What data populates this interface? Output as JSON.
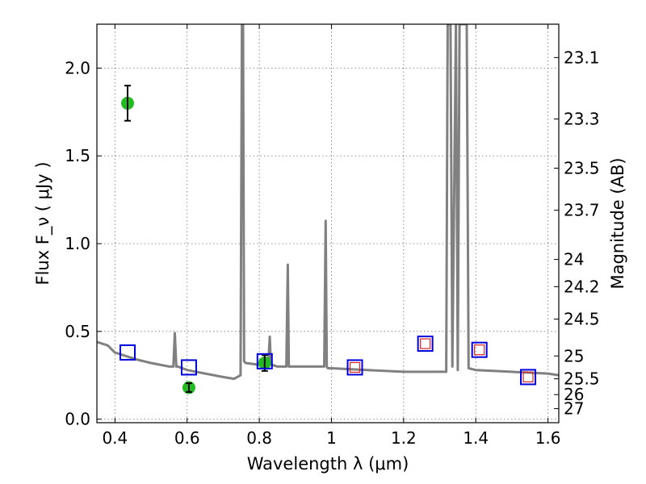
{
  "chart_data": {
    "type": "line",
    "xlabel": "Wavelength λ (μm)",
    "ylabel": "Flux F_ν ( μJy )",
    "y2label": "Magnitude (AB)",
    "xlim": [
      0.35,
      1.63
    ],
    "ylim": [
      -0.02,
      2.25
    ],
    "grid": true,
    "x_ticks": [
      0.4,
      0.6,
      0.8,
      1.0,
      1.2,
      1.4,
      1.6
    ],
    "x_tick_labels": [
      "0.4",
      "0.6",
      "0.8",
      "1",
      "1.2",
      "1.4",
      "1.6"
    ],
    "y_ticks": [
      0.0,
      0.5,
      1.0,
      1.5,
      2.0
    ],
    "y_tick_labels": [
      "0.0",
      "0.5",
      "1.0",
      "1.5",
      "2.0"
    ],
    "magnitude_ticks": [
      {
        "label": "23.1",
        "flux": 2.06
      },
      {
        "label": "23.3",
        "flux": 1.71
      },
      {
        "label": "23.5",
        "flux": 1.43
      },
      {
        "label": "23.7",
        "flux": 1.19
      },
      {
        "label": "24",
        "flux": 0.91
      },
      {
        "label": "24.2",
        "flux": 0.755
      },
      {
        "label": "24.5",
        "flux": 0.57
      },
      {
        "label": "25",
        "flux": 0.36
      },
      {
        "label": "25.5",
        "flux": 0.23
      },
      {
        "label": "26",
        "flux": 0.14
      },
      {
        "label": "27",
        "flux": 0.06
      }
    ],
    "series": [
      {
        "style": "line",
        "color": "#808080",
        "x": [
          0.35,
          0.38,
          0.4,
          0.43,
          0.46,
          0.5,
          0.55,
          0.562,
          0.566,
          0.57,
          0.574,
          0.6,
          0.65,
          0.7,
          0.73,
          0.748,
          0.752,
          0.755,
          0.758,
          0.762,
          0.8,
          0.825,
          0.829,
          0.832,
          0.835,
          0.85,
          0.875,
          0.879,
          0.882,
          0.885,
          0.9,
          0.95,
          0.98,
          0.984,
          0.987,
          0.99,
          1.0,
          1.1,
          1.2,
          1.25,
          1.318,
          1.322,
          1.33,
          1.335,
          1.345,
          1.35,
          1.355,
          1.36,
          1.375,
          1.38,
          1.4,
          1.5,
          1.6,
          1.63
        ],
        "y": [
          0.44,
          0.42,
          0.38,
          0.36,
          0.34,
          0.32,
          0.3,
          0.3,
          0.49,
          0.3,
          0.3,
          0.28,
          0.26,
          0.24,
          0.23,
          0.25,
          2.25,
          2.25,
          0.33,
          0.32,
          0.31,
          0.32,
          0.47,
          0.31,
          0.31,
          0.3,
          0.3,
          0.88,
          0.3,
          0.3,
          0.3,
          0.3,
          0.3,
          1.13,
          0.3,
          0.29,
          0.29,
          0.28,
          0.27,
          0.27,
          0.27,
          2.25,
          2.25,
          0.3,
          2.25,
          0.28,
          2.25,
          2.25,
          2.25,
          0.29,
          0.28,
          0.27,
          0.26,
          0.25
        ]
      },
      {
        "style": "filled-circles-errorbars",
        "color": "#22bb22",
        "points": [
          {
            "x": 0.435,
            "y": 1.8,
            "err": 0.1
          },
          {
            "x": 0.605,
            "y": 0.18,
            "err": 0.025
          },
          {
            "x": 0.815,
            "y": 0.32,
            "err": 0.045
          }
        ]
      },
      {
        "style": "open-squares",
        "color": "#0000dd",
        "x": [
          0.435,
          0.605,
          0.815,
          1.065,
          1.26,
          1.41,
          1.545
        ],
        "y": [
          0.38,
          0.295,
          0.33,
          0.295,
          0.43,
          0.395,
          0.24
        ]
      },
      {
        "style": "small-open-squares",
        "color": "#dd2222",
        "x": [
          1.065,
          1.26,
          1.41,
          1.545
        ],
        "y": [
          0.295,
          0.43,
          0.395,
          0.24
        ]
      }
    ]
  }
}
